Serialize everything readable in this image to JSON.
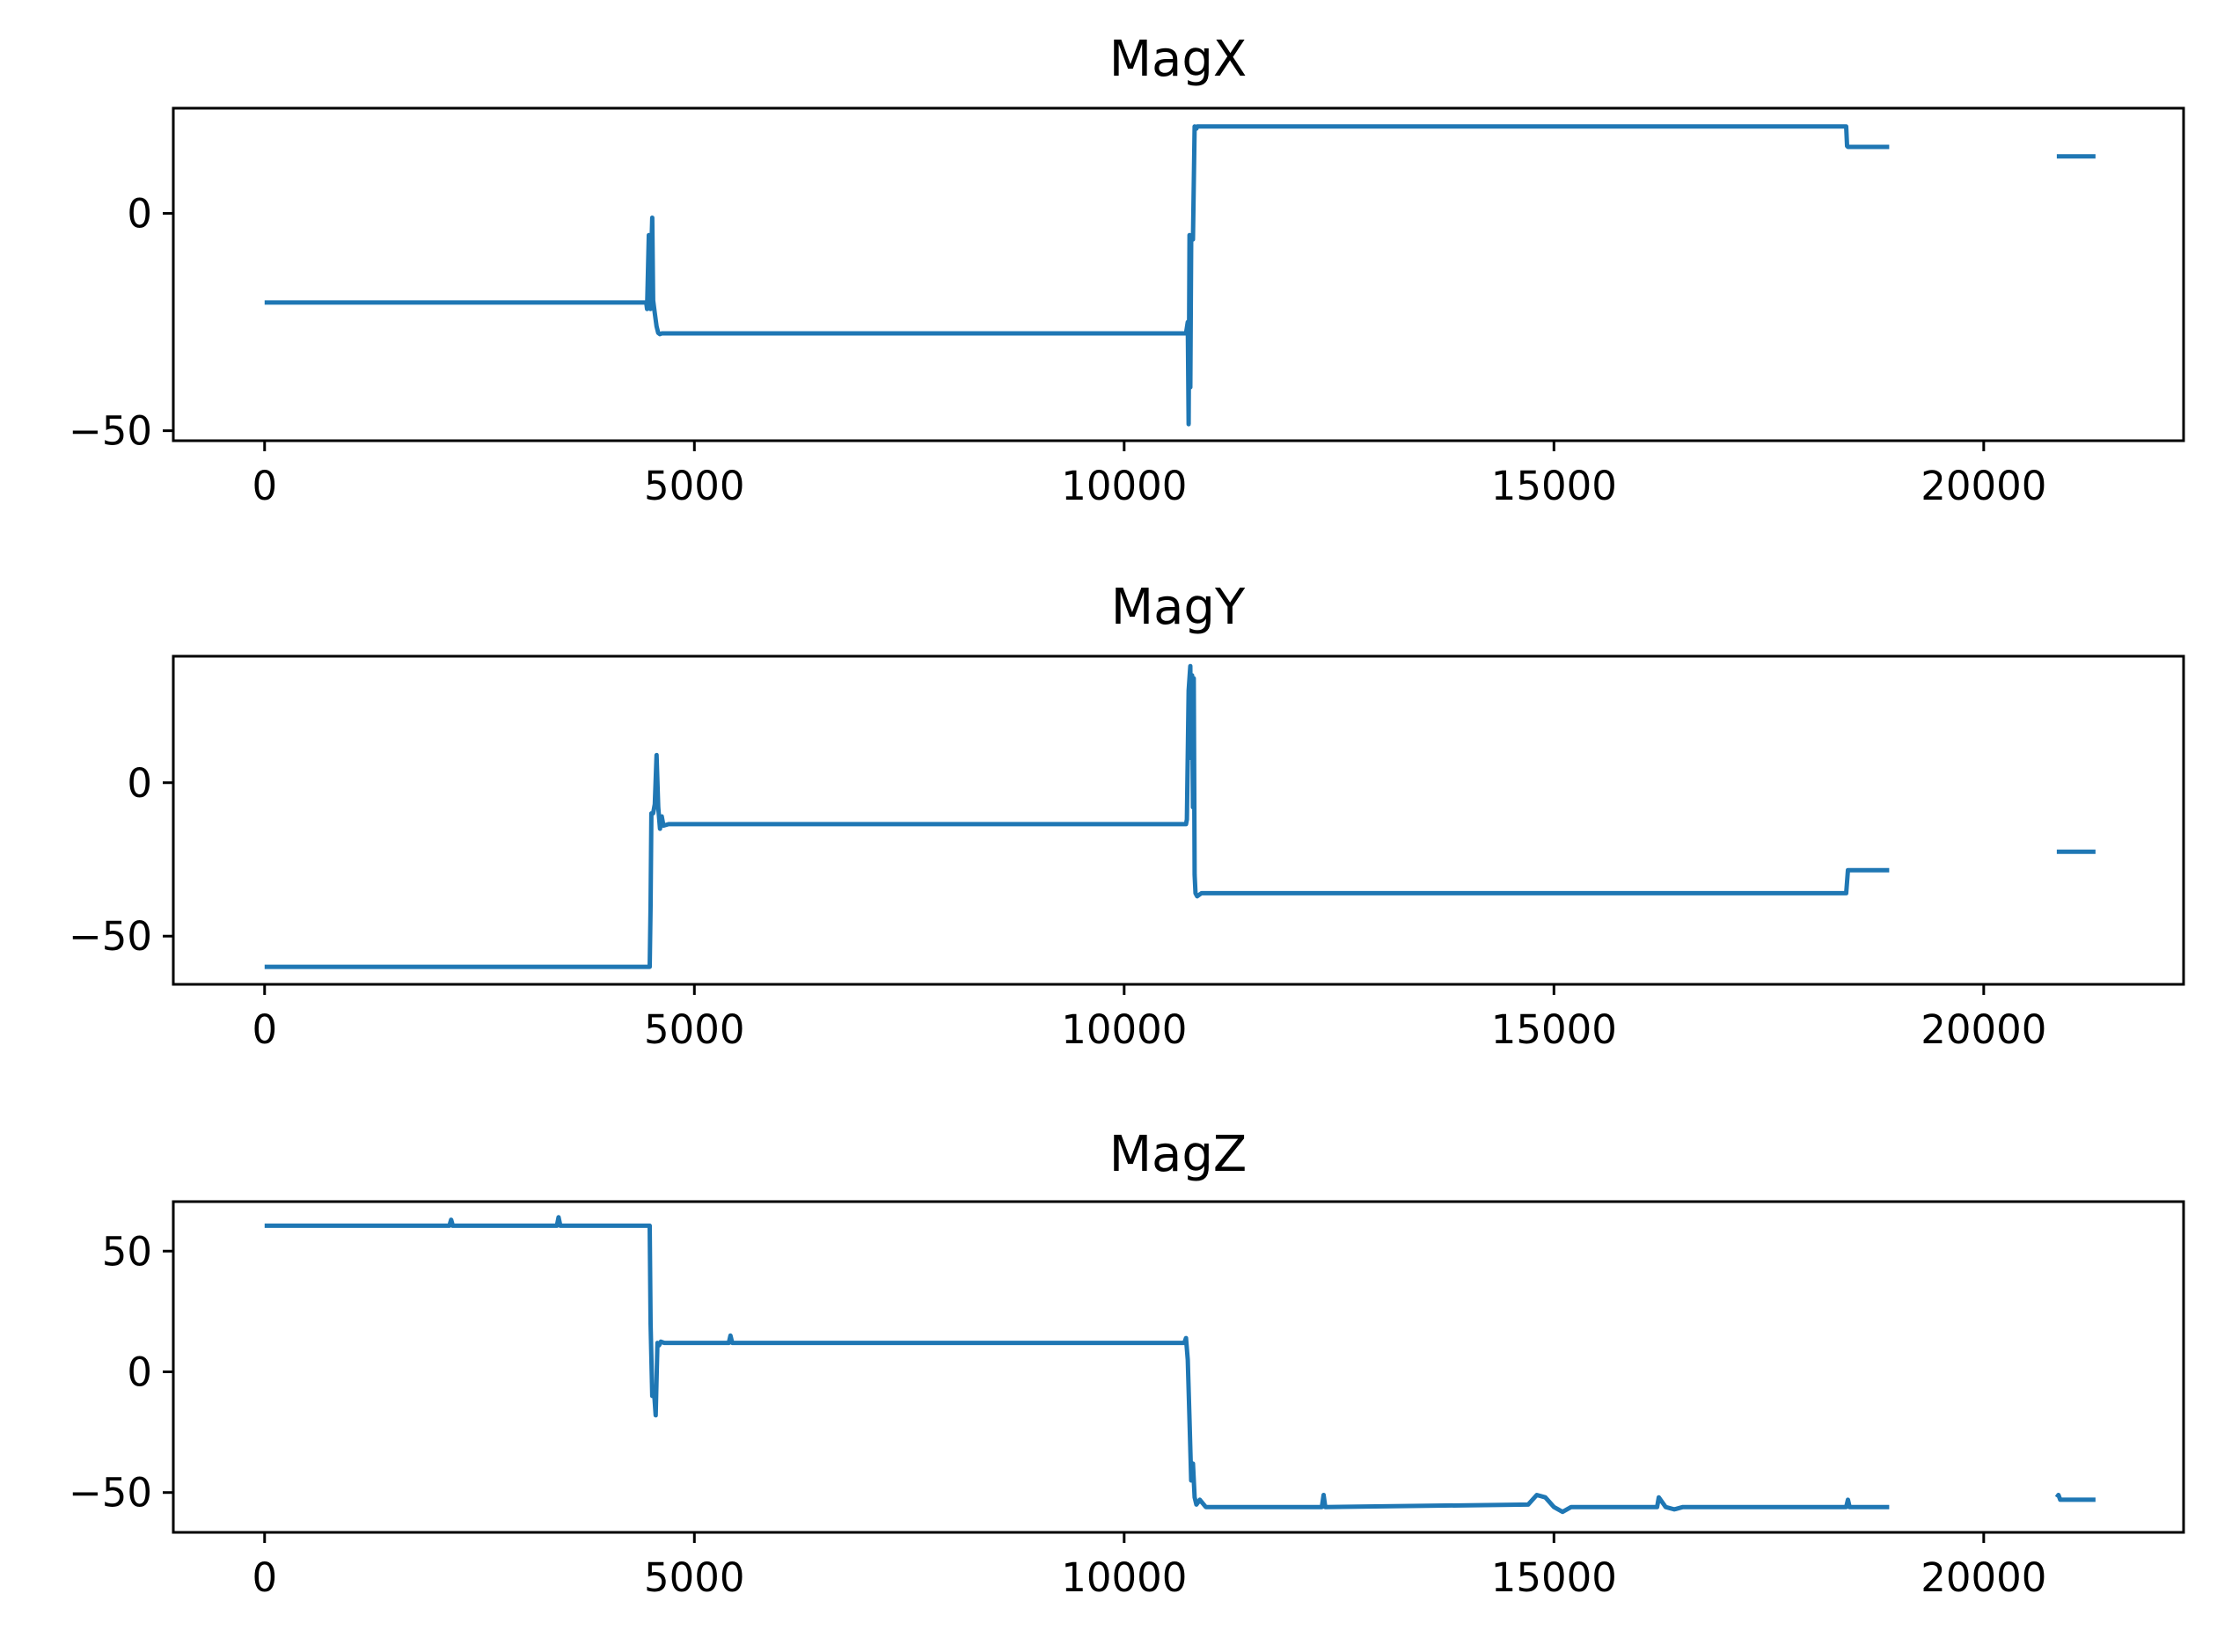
{
  "chart_data": [
    {
      "type": "line",
      "title": "MagX",
      "xlabel": "",
      "ylabel": "",
      "xlim": [
        -1062,
        22325
      ],
      "ylim": [
        -52.3,
        24.2
      ],
      "xticks": [
        0,
        5000,
        10000,
        15000,
        20000
      ],
      "xtick_labels": [
        "0",
        "5000",
        "10000",
        "15000",
        "20000"
      ],
      "yticks": [
        0,
        -50
      ],
      "ytick_labels": [
        "0",
        "−50"
      ],
      "grid": false,
      "color": "#1f77b4",
      "segments": [
        {
          "x": [
            0,
            4440,
            4450,
            4470,
            4490,
            4500,
            4510,
            4520,
            4540,
            4560,
            4580,
            4600,
            4620,
            10720,
            10740,
            10750,
            10760,
            10770,
            10780,
            10800,
            10820,
            10830,
            10840,
            10850,
            10870,
            18400,
            18410,
            18420,
            18900
          ],
          "y": [
            -20.5,
            -20.5,
            -22,
            -5,
            -22,
            -8,
            -1,
            -20,
            -23,
            -26,
            -27.5,
            -27.8,
            -27.6,
            -27.6,
            -25,
            -48.5,
            -5,
            -40,
            -6,
            -6,
            20,
            19.8,
            19.5,
            20.0,
            20.0,
            20.0,
            15.5,
            15.3,
            15.3
          ]
        },
        {
          "x": [
            20850,
            21300
          ],
          "y": [
            13.1,
            13.1
          ]
        }
      ]
    },
    {
      "type": "line",
      "title": "MagY",
      "xlabel": "",
      "ylabel": "",
      "xlim": [
        -1062,
        22325
      ],
      "ylim": [
        -65.7,
        41.2
      ],
      "xticks": [
        0,
        5000,
        10000,
        15000,
        20000
      ],
      "xtick_labels": [
        "0",
        "5000",
        "10000",
        "15000",
        "20000"
      ],
      "yticks": [
        0,
        -50
      ],
      "ytick_labels": [
        "0",
        "−50"
      ],
      "grid": false,
      "color": "#1f77b4",
      "segments": [
        {
          "x": [
            0,
            4480,
            4490,
            4500,
            4520,
            4540,
            4560,
            4580,
            4600,
            4620,
            4640,
            4700,
            10720,
            10730,
            10750,
            10770,
            10780,
            10790,
            10800,
            10810,
            10820,
            10830,
            10850,
            10900,
            18400,
            18420,
            18900
          ],
          "y": [
            -60,
            -60,
            -40,
            -10,
            -10,
            -7,
            9,
            -8,
            -15,
            -11,
            -14,
            -13.5,
            -13.5,
            -12,
            30,
            38,
            8,
            35,
            -8,
            34,
            -30,
            -36,
            -37,
            -36,
            -36,
            -28.5,
            -28.5
          ]
        },
        {
          "x": [
            20850,
            21300
          ],
          "y": [
            -22.5,
            -22.5
          ]
        }
      ]
    },
    {
      "type": "line",
      "title": "MagZ",
      "xlabel": "",
      "ylabel": "",
      "xlim": [
        -1062,
        22325
      ],
      "ylim": [
        -66.5,
        70.5
      ],
      "xticks": [
        0,
        5000,
        10000,
        15000,
        20000
      ],
      "xtick_labels": [
        "0",
        "5000",
        "10000",
        "15000",
        "20000"
      ],
      "yticks": [
        50,
        0,
        -50
      ],
      "ytick_labels": [
        "50",
        "0",
        "−50"
      ],
      "grid": false,
      "color": "#1f77b4",
      "segments": [
        {
          "x": [
            0,
            2150,
            2170,
            2190,
            3400,
            3420,
            3440,
            4480,
            4490,
            4510,
            4530,
            4550,
            4570,
            4590,
            4610,
            4650,
            5400,
            5420,
            5440,
            10700,
            10720,
            10740,
            10760,
            10780,
            10800,
            10820,
            10840,
            10880,
            10950,
            12300,
            12320,
            12340,
            14700,
            14800,
            14900,
            15000,
            15100,
            15200,
            16200,
            16220,
            16300,
            16400,
            16500,
            18400,
            18420,
            18440,
            18900
          ],
          "y": [
            60.5,
            60.5,
            63,
            60.5,
            60.5,
            64,
            60.5,
            60.5,
            20,
            -10,
            -8,
            -18,
            12,
            11,
            12.5,
            12,
            12,
            15,
            12,
            12,
            14,
            5,
            -20,
            -45,
            -38,
            -52,
            -55,
            -53,
            -56,
            -56,
            -51,
            -56,
            -55,
            -51,
            -52,
            -56,
            -58,
            -56,
            -56,
            -52,
            -56,
            -57,
            -56,
            -56,
            -53,
            -56,
            -56
          ]
        },
        {
          "x": [
            20850,
            20870,
            20890,
            21300
          ],
          "y": [
            -52,
            -51,
            -53,
            -53
          ]
        }
      ]
    }
  ]
}
